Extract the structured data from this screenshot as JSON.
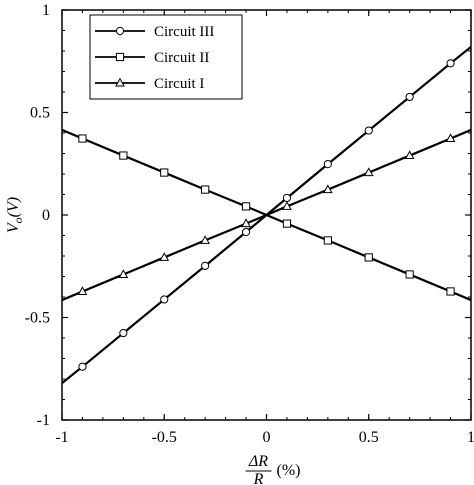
{
  "chart_data": {
    "type": "line",
    "x": [
      -1,
      -0.9,
      -0.7,
      -0.5,
      -0.3,
      -0.1,
      0,
      0.1,
      0.3,
      0.5,
      0.7,
      0.9,
      1
    ],
    "marker_x": [
      -0.9,
      -0.7,
      -0.5,
      -0.3,
      -0.1,
      0.1,
      0.3,
      0.5,
      0.7,
      0.9
    ],
    "series": [
      {
        "name": "Circuit III",
        "marker": "circle",
        "values": [
          -0.82,
          -0.74,
          -0.576,
          -0.412,
          -0.248,
          -0.083,
          0,
          0.083,
          0.248,
          0.412,
          0.576,
          0.74,
          0.82
        ]
      },
      {
        "name": "Circuit II",
        "marker": "square",
        "values": [
          0.415,
          0.373,
          0.29,
          0.207,
          0.124,
          0.042,
          0,
          -0.042,
          -0.124,
          -0.207,
          -0.29,
          -0.373,
          -0.415
        ]
      },
      {
        "name": "Circuit I",
        "marker": "triangle",
        "values": [
          -0.415,
          -0.373,
          -0.29,
          -0.207,
          -0.124,
          -0.042,
          0,
          0.042,
          0.124,
          0.207,
          0.29,
          0.373,
          0.415
        ]
      }
    ],
    "xlim": [
      -1,
      1
    ],
    "ylim": [
      -1,
      1
    ],
    "xticks": [
      "-1",
      "-0.5",
      "0",
      "0.5",
      "1"
    ],
    "yticks": [
      "-1",
      "-0.5",
      "0",
      "0.5",
      "1"
    ],
    "xticks_values": [
      -1,
      -0.5,
      0,
      0.5,
      1
    ],
    "yticks_values": [
      -1,
      -0.5,
      0,
      0.5,
      1
    ],
    "xlabel_num": "ΔR",
    "xlabel_den": "R",
    "xlabel_unit": "(%)",
    "ylabel_main": "V",
    "ylabel_sub": "o",
    "ylabel_paren": "(V)",
    "legend_position": "top-left",
    "grid": false
  }
}
